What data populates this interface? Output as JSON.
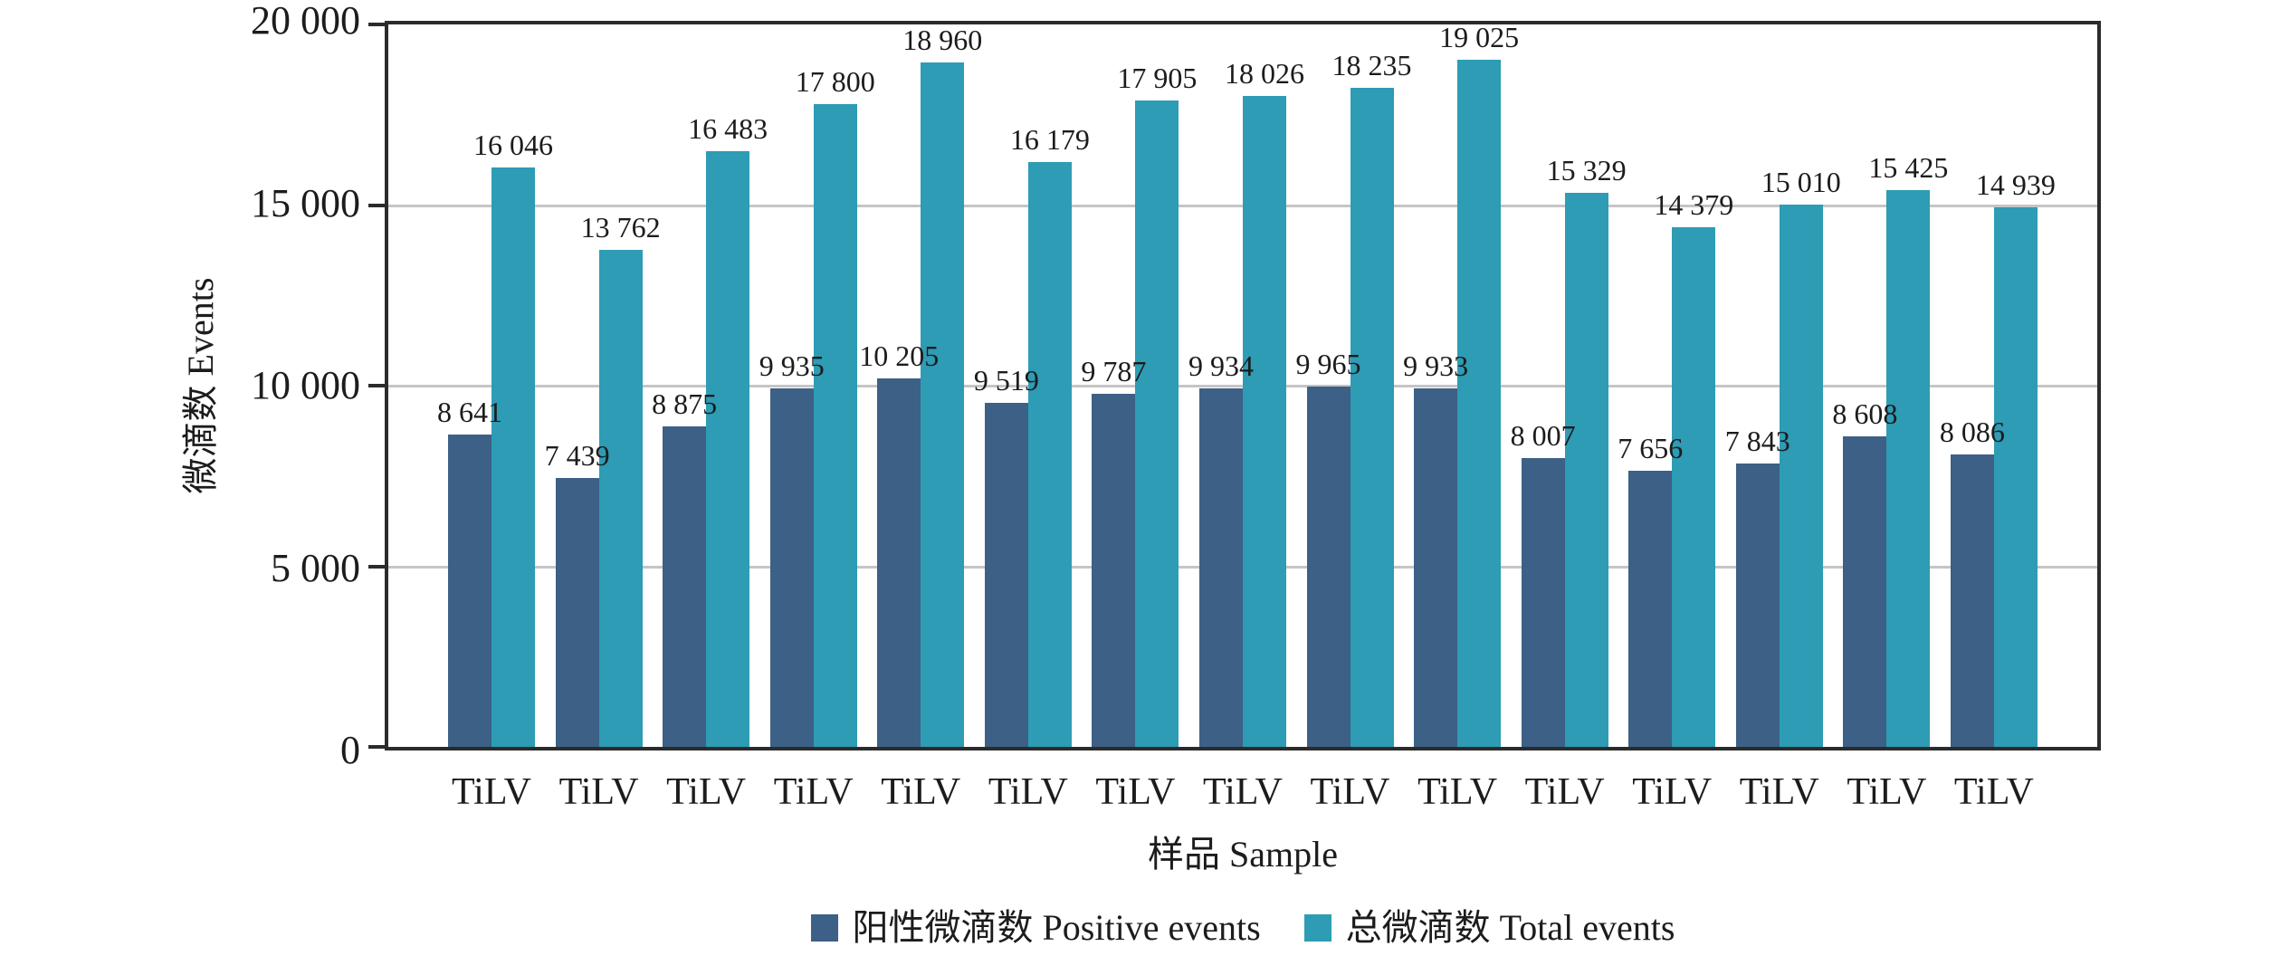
{
  "chart_data": {
    "type": "bar",
    "title": "",
    "xlabel": "样品 Sample",
    "ylabel": "微滴数 Events",
    "ylim": [
      0,
      20000
    ],
    "grid": "horizontal",
    "legend_position": "bottom",
    "categories": [
      "TiLV",
      "TiLV",
      "TiLV",
      "TiLV",
      "TiLV",
      "TiLV",
      "TiLV",
      "TiLV",
      "TiLV",
      "TiLV",
      "TiLV",
      "TiLV",
      "TiLV",
      "TiLV",
      "TiLV"
    ],
    "yticks": [
      {
        "value": 0,
        "label": "0"
      },
      {
        "value": 5000,
        "label": "5 000"
      },
      {
        "value": 10000,
        "label": "10 000"
      },
      {
        "value": 15000,
        "label": "15 000"
      },
      {
        "value": 20000,
        "label": "20 000"
      }
    ],
    "series": [
      {
        "name": "阳性微滴数 Positive events",
        "color": "#3c6086",
        "values": [
          8641,
          7439,
          8875,
          9935,
          10205,
          9519,
          9787,
          9934,
          9965,
          9933,
          8007,
          7656,
          7843,
          8608,
          8086
        ],
        "labels": [
          "8 641",
          "7 439",
          "8 875",
          "9 935",
          "10 205",
          "9 519",
          "9 787",
          "9 934",
          "9 965",
          "9 933",
          "8 007",
          "7 656",
          "7 843",
          "8 608",
          "8 086"
        ]
      },
      {
        "name": "总微滴数 Total events",
        "color": "#2d9cb4",
        "values": [
          16046,
          13762,
          16483,
          17800,
          18960,
          16179,
          17905,
          18026,
          18235,
          19025,
          15329,
          14379,
          15010,
          15425,
          14939
        ],
        "labels": [
          "16 046",
          "13 762",
          "16 483",
          "17 800",
          "18 960",
          "16 179",
          "17 905",
          "18 026",
          "18 235",
          "19 025",
          "15 329",
          "14 379",
          "15 010",
          "15 425",
          "14 939"
        ]
      }
    ]
  },
  "colors": {
    "gridline": "#c5c5c5",
    "axis": "#2b2b2b",
    "text": "#1c1c1c",
    "background": "#ffffff"
  }
}
